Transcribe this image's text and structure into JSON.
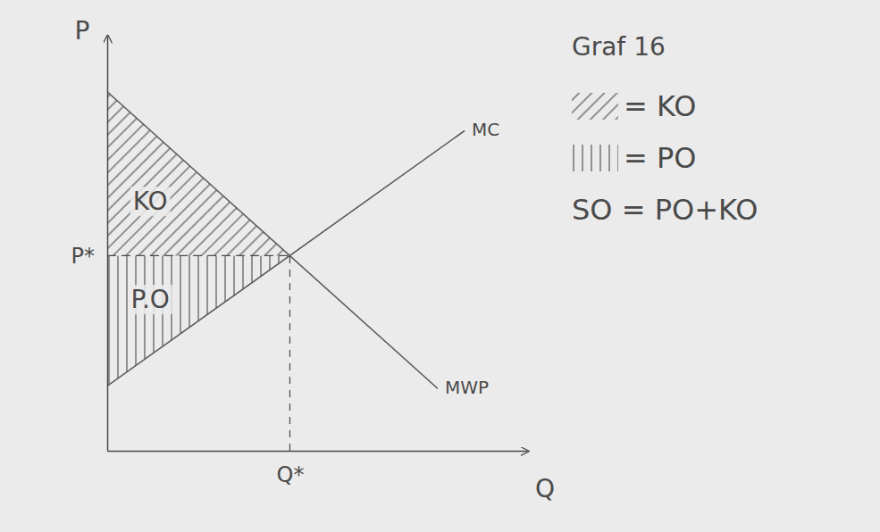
{
  "chart_data": {
    "type": "line",
    "title": "Graf 16",
    "x_label": "Q",
    "y_label": "P",
    "xlim": [
      0,
      10
    ],
    "ylim": [
      0,
      10
    ],
    "xticks": [
      {
        "value": 4.35,
        "label": "Q*"
      }
    ],
    "yticks": [
      {
        "value": 4.7,
        "label": "P*"
      }
    ],
    "grid": false,
    "legend": "right",
    "series": [
      {
        "name": "MC",
        "color": "#5a5a5a",
        "x": [
          0,
          8.51
        ],
        "values": [
          1.56,
          7.71
        ]
      },
      {
        "name": "MWP",
        "color": "#5a5a5a",
        "x": [
          0,
          7.87
        ],
        "values": [
          8.65,
          1.5
        ]
      }
    ],
    "areas": [
      {
        "label": "KO",
        "legend_text": "= KO",
        "color": "#6a6a6a",
        "line_style": "diagonal",
        "x": [
          0,
          4.35,
          0
        ],
        "values": [
          8.65,
          4.7,
          4.7
        ]
      },
      {
        "label": "P.O",
        "legend_text": "= PO",
        "color": "#6a6a6a",
        "line_style": "vertical",
        "x": [
          0,
          4.35,
          0
        ],
        "values": [
          4.7,
          4.7,
          1.56
        ]
      }
    ],
    "annotations": [
      "SO = PO+KO"
    ]
  }
}
